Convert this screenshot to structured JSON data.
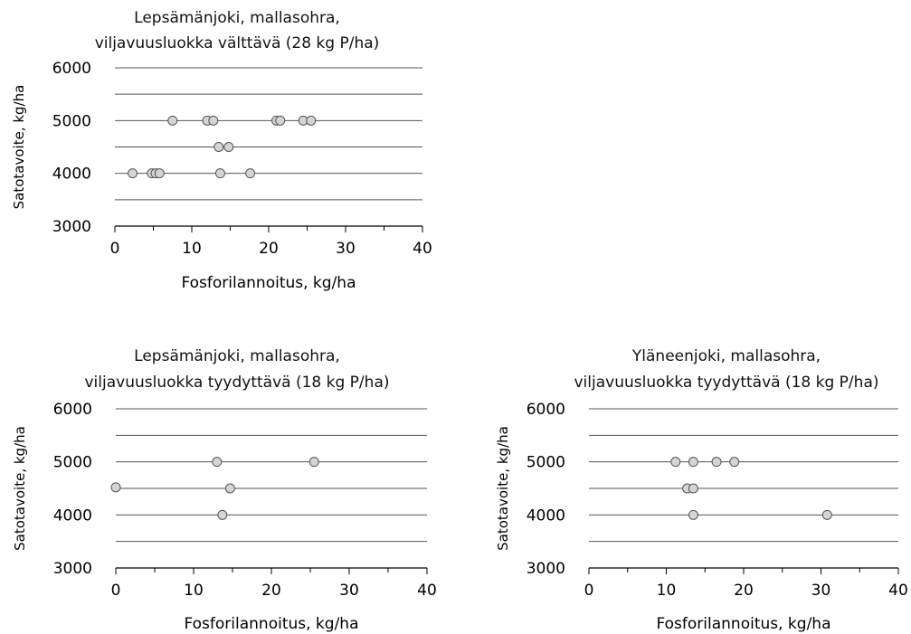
{
  "chart_data": [
    {
      "type": "scatter",
      "title": "Lepsämänjoki, mallasohra,",
      "subtitle": "viljavuusluokka välttävä (28 kg P/ha)",
      "xlabel": "Fosforilannoitus, kg/ha",
      "ylabel": "Satotavoite, kg/ha",
      "xlim": [
        0,
        40
      ],
      "ylim": [
        3000,
        6000
      ],
      "x_ticks": [
        "0",
        "10",
        "20",
        "30",
        "40"
      ],
      "y_ticks": [
        "3000",
        "4000",
        "5000",
        "6000"
      ],
      "gridlines_y": [
        3500,
        4000,
        4500,
        5000,
        5500,
        6000
      ],
      "grid": "horizontal",
      "point_fill": "#d4d4d4",
      "point_stroke": "#555555",
      "points": [
        {
          "x": 7.5,
          "y": 5000
        },
        {
          "x": 12.0,
          "y": 5000
        },
        {
          "x": 12.8,
          "y": 5000
        },
        {
          "x": 21.0,
          "y": 5000
        },
        {
          "x": 21.5,
          "y": 5000
        },
        {
          "x": 24.5,
          "y": 5000
        },
        {
          "x": 25.5,
          "y": 5000
        },
        {
          "x": 13.5,
          "y": 4500
        },
        {
          "x": 14.8,
          "y": 4500
        },
        {
          "x": 2.3,
          "y": 4000
        },
        {
          "x": 4.8,
          "y": 4000
        },
        {
          "x": 5.3,
          "y": 4000
        },
        {
          "x": 5.8,
          "y": 4000
        },
        {
          "x": 13.7,
          "y": 4000
        },
        {
          "x": 17.6,
          "y": 4000
        }
      ]
    },
    {
      "type": "scatter",
      "title": "Lepsämänjoki, mallasohra,",
      "subtitle": "viljavuusluokka tyydyttävä (18 kg P/ha)",
      "xlabel": "Fosforilannoitus, kg/ha",
      "ylabel": "Satotavoite, kg/ha",
      "xlim": [
        0,
        40
      ],
      "ylim": [
        3000,
        6000
      ],
      "x_ticks": [
        "0",
        "10",
        "20",
        "30",
        "40"
      ],
      "y_ticks": [
        "3000",
        "4000",
        "5000",
        "6000"
      ],
      "gridlines_y": [
        3500,
        4000,
        4500,
        5000,
        5500,
        6000
      ],
      "grid": "horizontal",
      "point_fill": "#d4d4d4",
      "point_stroke": "#555555",
      "points": [
        {
          "x": 13.0,
          "y": 5000
        },
        {
          "x": 25.5,
          "y": 5000
        },
        {
          "x": 0.0,
          "y": 4520
        },
        {
          "x": 14.7,
          "y": 4500
        },
        {
          "x": 13.7,
          "y": 4000
        }
      ]
    },
    {
      "type": "scatter",
      "title": "Yläneenjoki, mallasohra,",
      "subtitle": "viljavuusluokka tyydyttävä (18 kg P/ha)",
      "xlabel": "Fosforilannoitus, kg/ha",
      "ylabel": "Satotavoite, kg/ha",
      "xlim": [
        0,
        40
      ],
      "ylim": [
        3000,
        6000
      ],
      "x_ticks": [
        "0",
        "10",
        "20",
        "30",
        "40"
      ],
      "y_ticks": [
        "3000",
        "4000",
        "5000",
        "6000"
      ],
      "gridlines_y": [
        3500,
        4000,
        4500,
        5000,
        5500,
        6000
      ],
      "grid": "horizontal",
      "point_fill": "#d4d4d4",
      "point_stroke": "#555555",
      "points": [
        {
          "x": 11.2,
          "y": 5000
        },
        {
          "x": 13.5,
          "y": 5000
        },
        {
          "x": 16.5,
          "y": 5000
        },
        {
          "x": 18.8,
          "y": 5000
        },
        {
          "x": 12.7,
          "y": 4500
        },
        {
          "x": 13.5,
          "y": 4500
        },
        {
          "x": 13.5,
          "y": 4000
        },
        {
          "x": 30.8,
          "y": 4000
        }
      ]
    }
  ]
}
